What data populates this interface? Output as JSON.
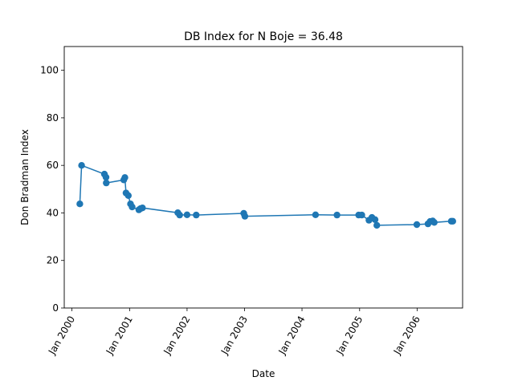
{
  "chart_data": {
    "type": "line",
    "title": "DB Index for N Boje = 36.48",
    "xlabel": "Date",
    "ylabel": "Don Bradman Index",
    "ylim": [
      0,
      110
    ],
    "yticks": [
      0,
      20,
      40,
      60,
      80,
      100
    ],
    "xlim": [
      "1999-11-13",
      "2006-10-17"
    ],
    "xticks": [
      {
        "date": "2000-01-01",
        "label": "Jan 2000"
      },
      {
        "date": "2001-01-01",
        "label": "Jan 2001"
      },
      {
        "date": "2002-01-01",
        "label": "Jan 2002"
      },
      {
        "date": "2003-01-01",
        "label": "Jan 2003"
      },
      {
        "date": "2004-01-01",
        "label": "Jan 2004"
      },
      {
        "date": "2005-01-01",
        "label": "Jan 2005"
      },
      {
        "date": "2006-01-01",
        "label": "Jan 2006"
      }
    ],
    "grid": false,
    "series": [
      {
        "color": "#1f77b4",
        "marker": "circle",
        "points": [
          {
            "x": "2000-02-20",
            "y": 43.8
          },
          {
            "x": "2000-03-02",
            "y": 60.0
          },
          {
            "x": "2000-07-25",
            "y": 56.3
          },
          {
            "x": "2000-08-04",
            "y": 55.0
          },
          {
            "x": "2000-08-06",
            "y": 52.6
          },
          {
            "x": "2000-11-25",
            "y": 53.9
          },
          {
            "x": "2000-12-02",
            "y": 54.9
          },
          {
            "x": "2000-12-09",
            "y": 48.4
          },
          {
            "x": "2000-12-24",
            "y": 47.3
          },
          {
            "x": "2001-01-07",
            "y": 43.8
          },
          {
            "x": "2001-01-17",
            "y": 42.5
          },
          {
            "x": "2001-03-01",
            "y": 41.3
          },
          {
            "x": "2001-03-11",
            "y": 41.8
          },
          {
            "x": "2001-03-24",
            "y": 42.1
          },
          {
            "x": "2001-11-03",
            "y": 40.1
          },
          {
            "x": "2001-11-15",
            "y": 39.1
          },
          {
            "x": "2002-01-01",
            "y": 39.2
          },
          {
            "x": "2002-02-28",
            "y": 39.1
          },
          {
            "x": "2002-12-27",
            "y": 39.8
          },
          {
            "x": "2003-01-03",
            "y": 38.6
          },
          {
            "x": "2004-03-27",
            "y": 39.2
          },
          {
            "x": "2004-08-10",
            "y": 39.1
          },
          {
            "x": "2004-12-26",
            "y": 39.1
          },
          {
            "x": "2005-01-15",
            "y": 39.1
          },
          {
            "x": "2005-03-01",
            "y": 36.9
          },
          {
            "x": "2005-03-20",
            "y": 38.1
          },
          {
            "x": "2005-04-09",
            "y": 37.2
          },
          {
            "x": "2005-04-20",
            "y": 34.8
          },
          {
            "x": "2005-12-30",
            "y": 35.1
          },
          {
            "x": "2006-03-11",
            "y": 35.4
          },
          {
            "x": "2006-03-25",
            "y": 36.4
          },
          {
            "x": "2006-04-10",
            "y": 36.6
          },
          {
            "x": "2006-04-20",
            "y": 36.0
          },
          {
            "x": "2006-08-06",
            "y": 36.5
          },
          {
            "x": "2006-08-16",
            "y": 36.5
          }
        ]
      }
    ]
  }
}
